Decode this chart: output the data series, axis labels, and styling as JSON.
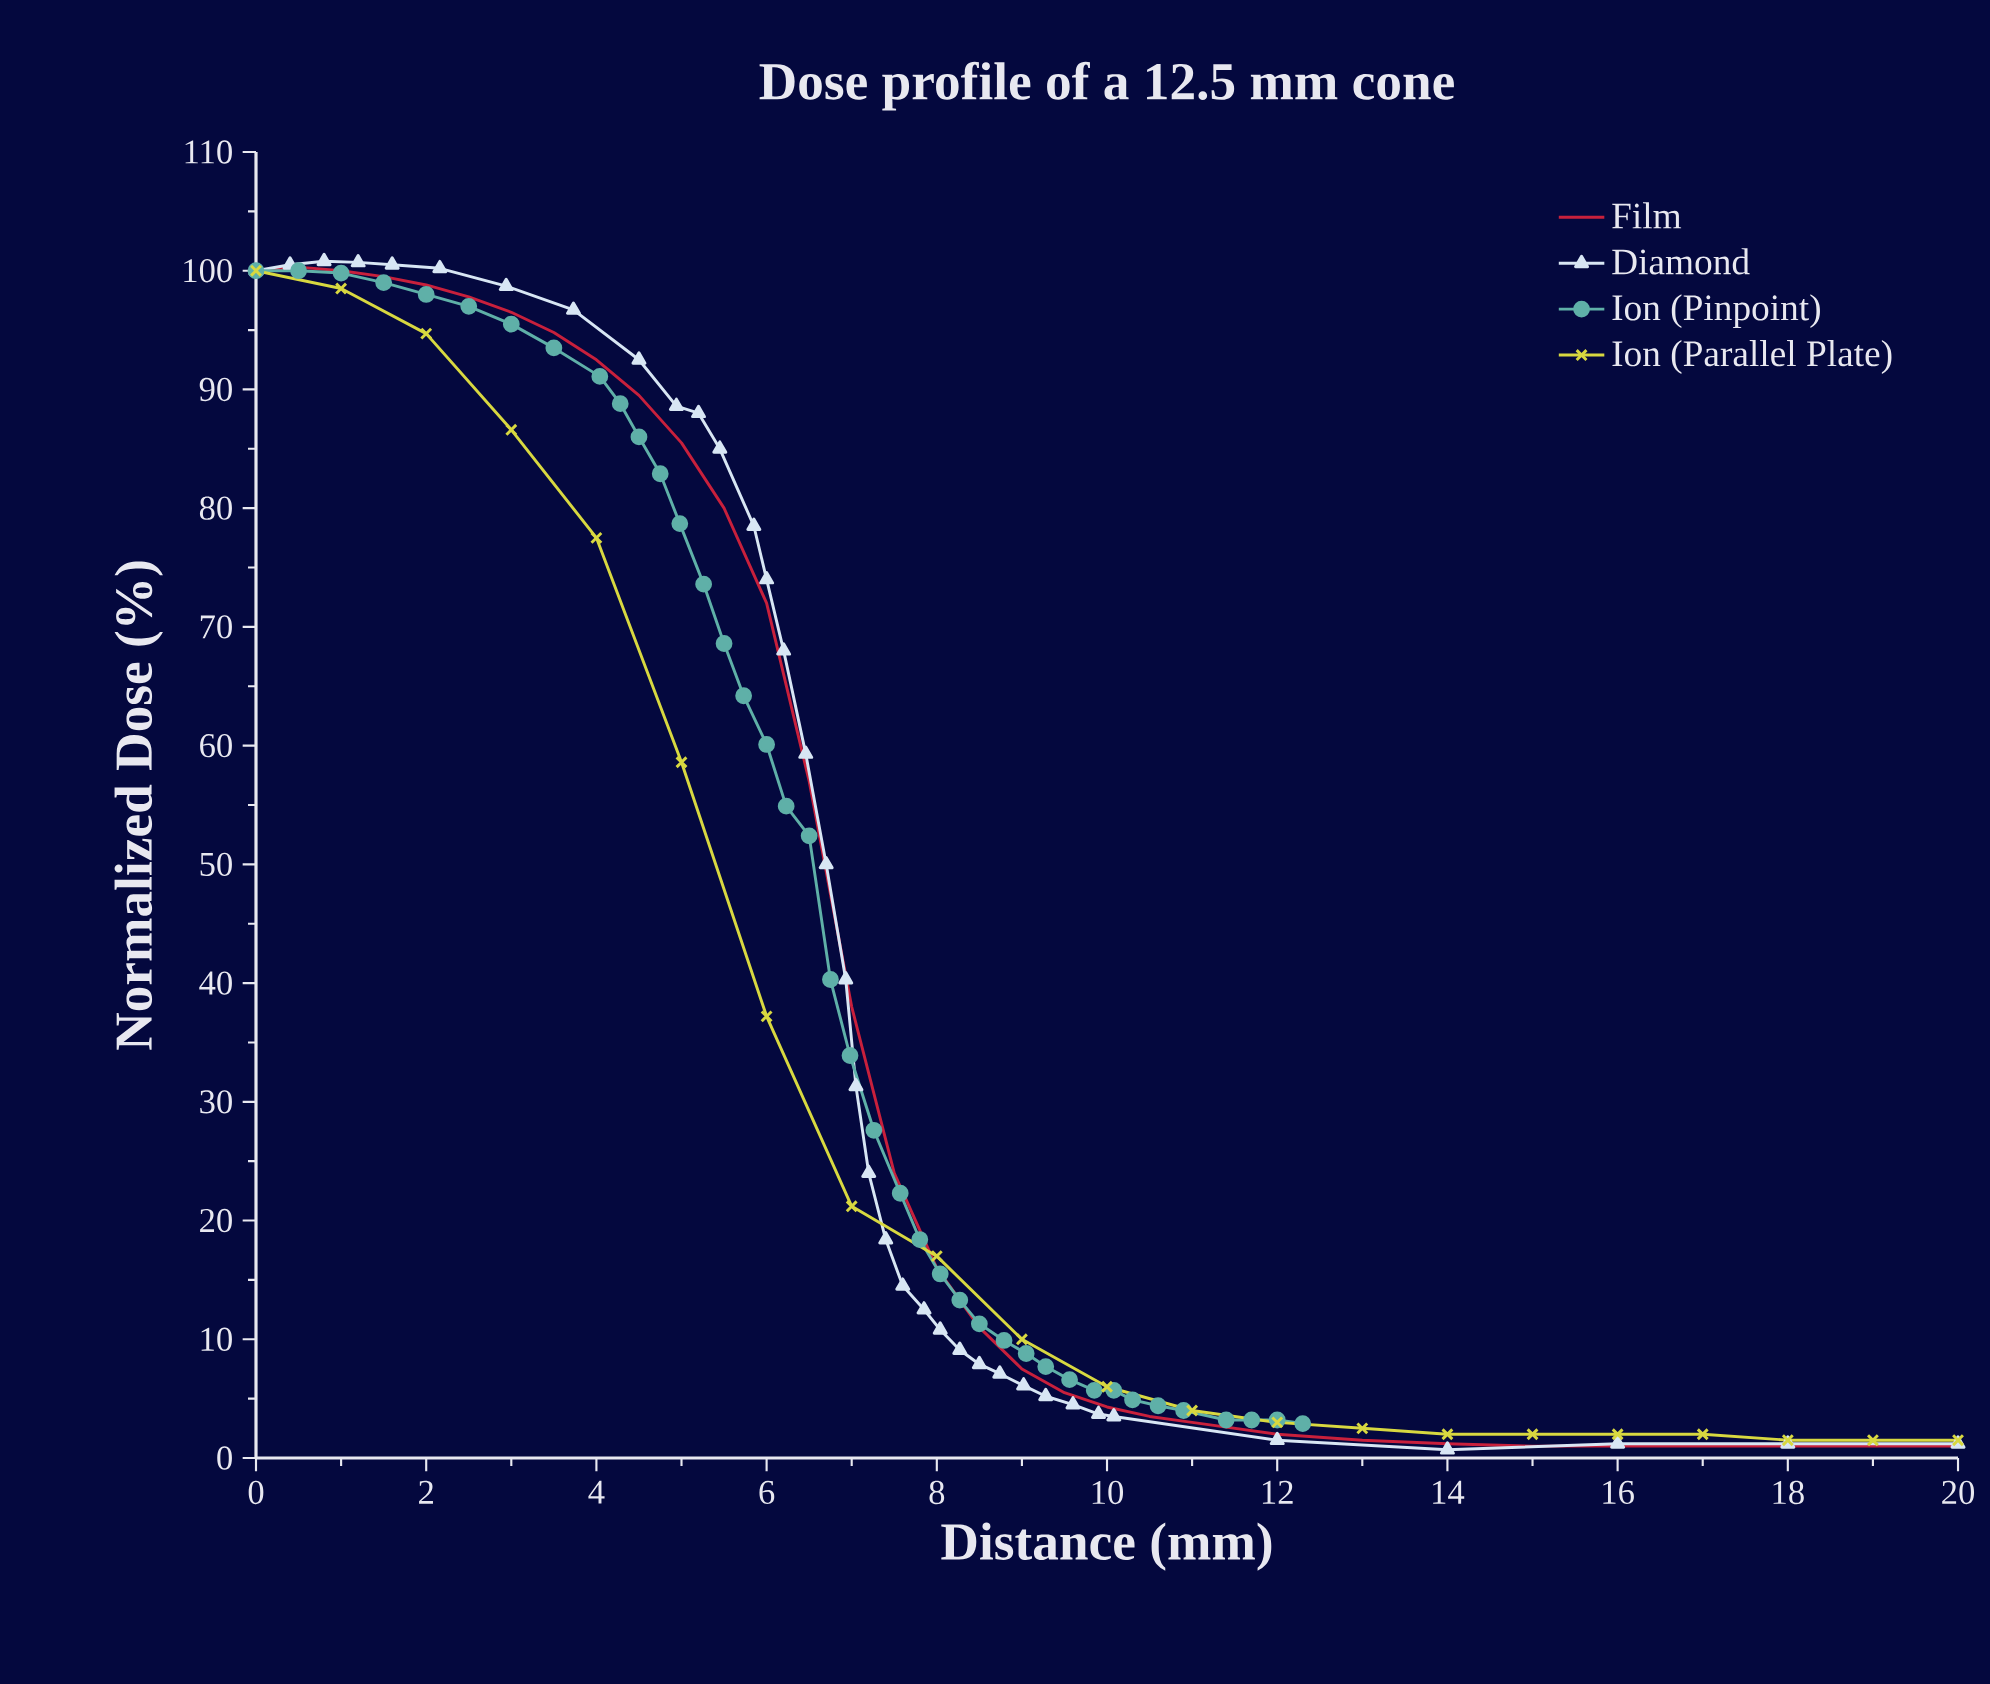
{
  "chart_data": {
    "type": "line",
    "title": "Dose profile of a 12.5 mm cone",
    "xlabel": "Distance (mm)",
    "ylabel": "Normalized Dose (%)",
    "xlim": [
      0,
      20
    ],
    "ylim": [
      0,
      110
    ],
    "xticks": [
      0,
      2,
      4,
      6,
      8,
      10,
      12,
      14,
      16,
      18,
      20
    ],
    "yticks": [
      0,
      10,
      20,
      30,
      40,
      50,
      60,
      70,
      80,
      90,
      100,
      110
    ],
    "grid": false,
    "legend": "top right",
    "series": [
      {
        "name": "Film",
        "color": "#c8203c",
        "marker": "none",
        "x": [
          0,
          0.5,
          1,
          1.5,
          2,
          2.5,
          3,
          3.5,
          4,
          4.5,
          5,
          5.5,
          6,
          6.5,
          7,
          7.5,
          8,
          8.5,
          9,
          9.5,
          10,
          10.5,
          11,
          12,
          13,
          14,
          15,
          16,
          17,
          18,
          19,
          20
        ],
        "values": [
          100,
          100.3,
          100,
          99.5,
          98.8,
          97.8,
          96.5,
          94.8,
          92.5,
          89.5,
          85.5,
          80,
          72,
          57,
          38,
          24,
          16,
          11,
          7.5,
          5.5,
          4.3,
          3.5,
          3,
          2,
          1.5,
          1.2,
          1,
          1,
          1,
          1,
          1,
          1
        ]
      },
      {
        "name": "Diamond",
        "color": "#d8e6f4",
        "marker": "triangle",
        "x": [
          0,
          0.4,
          0.8,
          1.2,
          1.6,
          2.16,
          2.94,
          3.73,
          4.5,
          4.94,
          5.2,
          5.45,
          5.85,
          6.0,
          6.2,
          6.46,
          6.7,
          6.93,
          7.05,
          7.2,
          7.4,
          7.6,
          7.85,
          8.04,
          8.27,
          8.5,
          8.74,
          9.02,
          9.28,
          9.6,
          9.9,
          10.08,
          12,
          14,
          16,
          18,
          20
        ],
        "values": [
          100,
          100.5,
          100.8,
          100.7,
          100.5,
          100.2,
          98.7,
          96.7,
          92.5,
          88.6,
          88,
          85,
          78.5,
          74,
          68,
          59.3,
          50,
          40.3,
          31.3,
          24,
          18.4,
          14.5,
          12.5,
          10.8,
          9.1,
          7.9,
          7.1,
          6.1,
          5.2,
          4.5,
          3.7,
          3.5,
          1.5,
          0.7,
          1.2,
          1.2,
          1.2
        ]
      },
      {
        "name": "Ion (Pinpoint)",
        "color": "#5fb0a8",
        "marker": "circle",
        "x": [
          0,
          0.5,
          1,
          1.5,
          2,
          2.5,
          3,
          3.5,
          4.04,
          4.28,
          4.5,
          4.75,
          4.98,
          5.26,
          5.5,
          5.73,
          6.0,
          6.23,
          6.5,
          6.75,
          6.98,
          7.26,
          7.57,
          7.8,
          8.04,
          8.27,
          8.5,
          8.79,
          9.05,
          9.28,
          9.56,
          9.85,
          10.08,
          10.3,
          10.6,
          10.9,
          11.4,
          11.7,
          12,
          12.3
        ],
        "values": [
          100,
          100,
          99.8,
          99,
          98,
          97,
          95.5,
          93.5,
          91.1,
          88.8,
          86,
          82.9,
          78.7,
          73.6,
          68.6,
          64.2,
          60.1,
          54.9,
          52.4,
          40.3,
          33.9,
          27.6,
          22.3,
          18.4,
          15.5,
          13.3,
          11.3,
          9.9,
          8.8,
          7.7,
          6.6,
          5.7,
          5.7,
          4.9,
          4.4,
          4,
          3.2,
          3.2,
          3.2,
          2.9
        ]
      },
      {
        "name": "Ion (Parallel Plate)",
        "color": "#d8d840",
        "marker": "cross",
        "x": [
          0,
          1,
          2,
          3,
          4,
          5,
          6,
          7,
          8,
          9,
          10,
          11,
          12,
          13,
          14,
          15,
          16,
          17,
          18,
          19,
          20
        ],
        "values": [
          100,
          98.5,
          94.7,
          86.6,
          77.5,
          58.6,
          37.2,
          21.2,
          17,
          10,
          6,
          4,
          3,
          2.5,
          2,
          2,
          2,
          2,
          1.5,
          1.5,
          1.5
        ]
      }
    ]
  }
}
